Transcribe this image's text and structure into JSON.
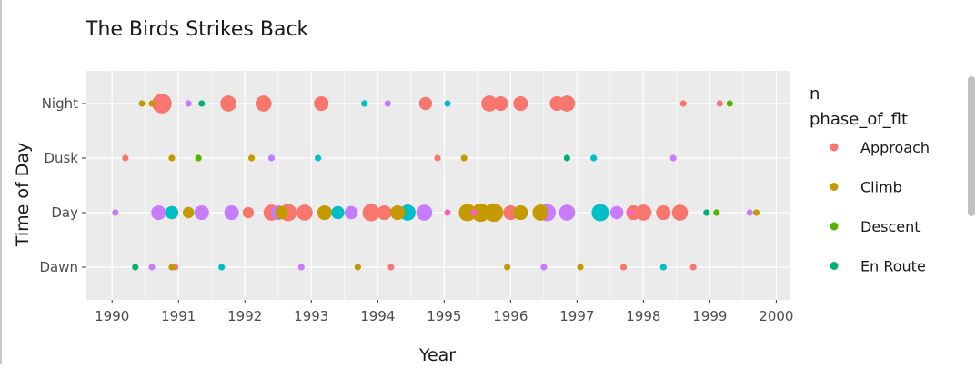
{
  "chart_data": {
    "type": "scatter",
    "title": "The Birds Strikes Back",
    "xlabel": "Year",
    "ylabel": "Time of Day",
    "xlim": [
      1989.6,
      2000.2
    ],
    "x_ticks": [
      "1990",
      "1991",
      "1992",
      "1993",
      "1994",
      "1995",
      "1996",
      "1997",
      "1998",
      "1999",
      "2000"
    ],
    "y_categories": [
      "Dawn",
      "Day",
      "Dusk",
      "Night"
    ],
    "grid": true,
    "legend_position": "right",
    "size_legend_title": "n",
    "legend_title": "phase_of_flt",
    "series": [
      {
        "name": "Approach",
        "color": "#F8766D",
        "points": [
          {
            "x": 1990.75,
            "y": "Night",
            "n": 9
          },
          {
            "x": 1991.75,
            "y": "Night",
            "n": 6
          },
          {
            "x": 1992.28,
            "y": "Night",
            "n": 6
          },
          {
            "x": 1993.15,
            "y": "Night",
            "n": 5
          },
          {
            "x": 1994.72,
            "y": "Night",
            "n": 4
          },
          {
            "x": 1995.68,
            "y": "Night",
            "n": 6
          },
          {
            "x": 1995.85,
            "y": "Night",
            "n": 5
          },
          {
            "x": 1996.15,
            "y": "Night",
            "n": 5
          },
          {
            "x": 1996.85,
            "y": "Night",
            "n": 6
          },
          {
            "x": 1996.7,
            "y": "Night",
            "n": 5
          },
          {
            "x": 1990.2,
            "y": "Dusk",
            "n": 1
          },
          {
            "x": 1994.9,
            "y": "Dusk",
            "n": 1
          },
          {
            "x": 1992.05,
            "y": "Day",
            "n": 3
          },
          {
            "x": 1992.4,
            "y": "Day",
            "n": 6
          },
          {
            "x": 1992.65,
            "y": "Day",
            "n": 7
          },
          {
            "x": 1992.9,
            "y": "Day",
            "n": 6
          },
          {
            "x": 1993.9,
            "y": "Day",
            "n": 7
          },
          {
            "x": 1994.1,
            "y": "Day",
            "n": 5
          },
          {
            "x": 1996.0,
            "y": "Day",
            "n": 5
          },
          {
            "x": 1997.85,
            "y": "Day",
            "n": 5
          },
          {
            "x": 1998.0,
            "y": "Day",
            "n": 6
          },
          {
            "x": 1998.3,
            "y": "Day",
            "n": 5
          },
          {
            "x": 1998.55,
            "y": "Day",
            "n": 6
          },
          {
            "x": 1990.95,
            "y": "Dawn",
            "n": 1
          },
          {
            "x": 1994.2,
            "y": "Dawn",
            "n": 1
          },
          {
            "x": 1997.7,
            "y": "Dawn",
            "n": 1
          },
          {
            "x": 1998.75,
            "y": "Dawn",
            "n": 1
          },
          {
            "x": 1999.15,
            "y": "Night",
            "n": 1
          },
          {
            "x": 1998.6,
            "y": "Night",
            "n": 1
          }
        ]
      },
      {
        "name": "Climb",
        "color": "#C49A00",
        "points": [
          {
            "x": 1990.45,
            "y": "Night",
            "n": 1
          },
          {
            "x": 1990.6,
            "y": "Night",
            "n": 1
          },
          {
            "x": 1990.9,
            "y": "Dusk",
            "n": 1
          },
          {
            "x": 1992.1,
            "y": "Dusk",
            "n": 1
          },
          {
            "x": 1995.3,
            "y": "Dusk",
            "n": 1
          },
          {
            "x": 1992.55,
            "y": "Day",
            "n": 4
          },
          {
            "x": 1993.2,
            "y": "Day",
            "n": 5
          },
          {
            "x": 1994.3,
            "y": "Day",
            "n": 5
          },
          {
            "x": 1995.35,
            "y": "Day",
            "n": 7
          },
          {
            "x": 1995.55,
            "y": "Day",
            "n": 8
          },
          {
            "x": 1995.75,
            "y": "Day",
            "n": 8
          },
          {
            "x": 1996.15,
            "y": "Day",
            "n": 5
          },
          {
            "x": 1996.45,
            "y": "Day",
            "n": 6
          },
          {
            "x": 1991.15,
            "y": "Day",
            "n": 3
          },
          {
            "x": 1999.7,
            "y": "Day",
            "n": 1
          },
          {
            "x": 1990.9,
            "y": "Dawn",
            "n": 1
          },
          {
            "x": 1993.7,
            "y": "Dawn",
            "n": 1
          },
          {
            "x": 1995.95,
            "y": "Dawn",
            "n": 1
          },
          {
            "x": 1997.05,
            "y": "Dawn",
            "n": 1
          }
        ]
      },
      {
        "name": "Descent",
        "color": "#53B400",
        "points": [
          {
            "x": 1999.3,
            "y": "Night",
            "n": 1
          },
          {
            "x": 1999.1,
            "y": "Day",
            "n": 1
          },
          {
            "x": 1991.3,
            "y": "Dusk",
            "n": 1
          }
        ]
      },
      {
        "name": "En Route",
        "color": "#00B06F",
        "points": [
          {
            "x": 1991.35,
            "y": "Night",
            "n": 1
          },
          {
            "x": 1998.95,
            "y": "Day",
            "n": 1
          },
          {
            "x": 1990.35,
            "y": "Dawn",
            "n": 1
          },
          {
            "x": 1996.85,
            "y": "Dusk",
            "n": 1
          }
        ]
      },
      {
        "name": "",
        "color": "#00BFC4",
        "points": [
          {
            "x": 1994.45,
            "y": "Day",
            "n": 6
          },
          {
            "x": 1997.35,
            "y": "Day",
            "n": 7
          },
          {
            "x": 1993.4,
            "y": "Day",
            "n": 4
          },
          {
            "x": 1990.9,
            "y": "Day",
            "n": 4
          },
          {
            "x": 1993.8,
            "y": "Night",
            "n": 1
          },
          {
            "x": 1995.05,
            "y": "Night",
            "n": 1
          },
          {
            "x": 1993.1,
            "y": "Dusk",
            "n": 1
          },
          {
            "x": 1997.25,
            "y": "Dusk",
            "n": 1
          },
          {
            "x": 1998.3,
            "y": "Dawn",
            "n": 1
          },
          {
            "x": 1991.65,
            "y": "Dawn",
            "n": 1
          }
        ]
      },
      {
        "name": "",
        "color": "#C77CFF",
        "points": [
          {
            "x": 1990.05,
            "y": "Day",
            "n": 1
          },
          {
            "x": 1990.7,
            "y": "Day",
            "n": 5
          },
          {
            "x": 1991.35,
            "y": "Day",
            "n": 5
          },
          {
            "x": 1991.8,
            "y": "Day",
            "n": 5
          },
          {
            "x": 1992.5,
            "y": "Day",
            "n": 5
          },
          {
            "x": 1993.6,
            "y": "Day",
            "n": 4
          },
          {
            "x": 1994.7,
            "y": "Day",
            "n": 6
          },
          {
            "x": 1996.55,
            "y": "Day",
            "n": 7
          },
          {
            "x": 1996.85,
            "y": "Day",
            "n": 6
          },
          {
            "x": 1997.6,
            "y": "Day",
            "n": 4
          },
          {
            "x": 1999.6,
            "y": "Day",
            "n": 1
          },
          {
            "x": 1991.15,
            "y": "Night",
            "n": 1
          },
          {
            "x": 1994.15,
            "y": "Night",
            "n": 1
          },
          {
            "x": 1992.4,
            "y": "Dusk",
            "n": 1
          },
          {
            "x": 1998.45,
            "y": "Dusk",
            "n": 1
          },
          {
            "x": 1990.6,
            "y": "Dawn",
            "n": 1
          },
          {
            "x": 1992.85,
            "y": "Dawn",
            "n": 1
          },
          {
            "x": 1996.5,
            "y": "Dawn",
            "n": 1
          }
        ]
      },
      {
        "name": "",
        "color": "#FF61C3",
        "points": [
          {
            "x": 1995.05,
            "y": "Day",
            "n": 1
          },
          {
            "x": 1995.45,
            "y": "Day",
            "n": 1
          },
          {
            "x": 1997.8,
            "y": "Day",
            "n": 1
          }
        ]
      }
    ]
  }
}
